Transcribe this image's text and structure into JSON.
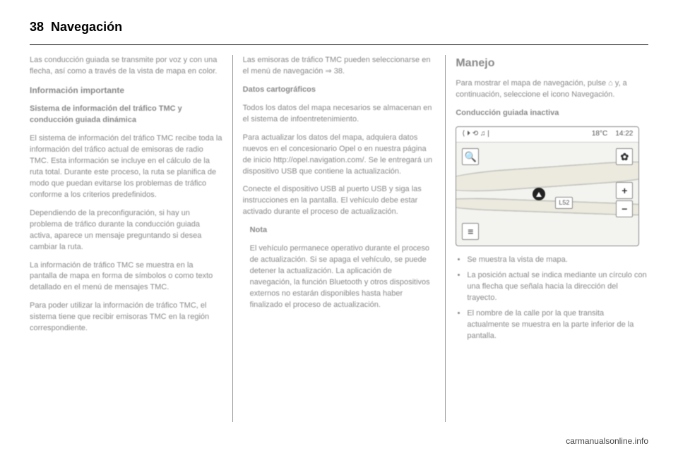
{
  "header": {
    "page_number": "38",
    "title": "Navegación"
  },
  "col1": {
    "p1": "Las conducción guiada se transmite por voz y con una flecha, así como a través de la vista de mapa en color.",
    "sub1": "Información importante",
    "sub2": "Sistema de información del tráfico TMC y conducción guiada dinámica",
    "p2": "El sistema de información del tráfico TMC recibe toda la información del tráfico actual de emisoras de radio TMC. Esta información se incluye en el cálculo de la ruta total. Durante este proceso, la ruta se planifica de modo que puedan evitarse los problemas de tráfico conforme a los criterios predefinidos.",
    "p3": "Dependiendo de la preconfiguración, si hay un problema de tráfico durante la conducción guiada activa, aparece un mensaje preguntando si desea cambiar la ruta.",
    "p4": "La información de tráfico TMC se muestra en la pantalla de mapa en forma de símbolos o como texto detallado en el menú de mensajes TMC.",
    "p5": "Para poder utilizar la información de tráfico TMC, el sistema tiene que recibir emisoras TMC en la región correspondiente."
  },
  "col2": {
    "p1": "Las emisoras de tráfico TMC pueden seleccionarse en el menú de navegación ⇒ 38.",
    "sub1": "Datos cartográficos",
    "p2": "Todos los datos del mapa necesarios se almacenan en el sistema de infoentretenimiento.",
    "p3": "Para actualizar los datos del mapa, adquiera datos nuevos en el concesionario Opel o en nuestra página de inicio http://opel.navigation.com/. Se le entregará un dispositivo USB que contiene la actualización.",
    "p4": "Conecte el dispositivo USB al puerto USB y siga las instrucciones en la pantalla. El vehículo debe estar activado durante el proceso de actualización.",
    "note_label": "Nota",
    "note": "El vehículo permanece operativo durante el proceso de actualización. Si se apaga el vehículo, se puede detener la actualización. La aplicación de navegación, la función Bluetooth y otros dispositivos externos no estarán disponibles hasta haber finalizado el proceso de actualización."
  },
  "col3": {
    "head": "Manejo",
    "p1": "Para mostrar el mapa de navegación, pulse ⌂ y, a continuación, seleccione el icono Navegación.",
    "sub1": "Conducción guiada inactiva",
    "map": {
      "topbar_icons": "⟨  ⏵  ⟲  ♫  |",
      "temp": "18°C",
      "time": "14:22",
      "route": "L52",
      "search": "🔍",
      "gear": "✿",
      "plus": "+",
      "minus": "−",
      "menu": "≡"
    },
    "bullets": [
      "Se muestra la vista de mapa.",
      "La posición actual se indica mediante un círculo con una flecha que señala hacia la dirección del trayecto.",
      "El nombre de la calle por la que transita actualmente se muestra en la parte inferior de la pantalla."
    ]
  },
  "footer": "carmanualsonline.info"
}
